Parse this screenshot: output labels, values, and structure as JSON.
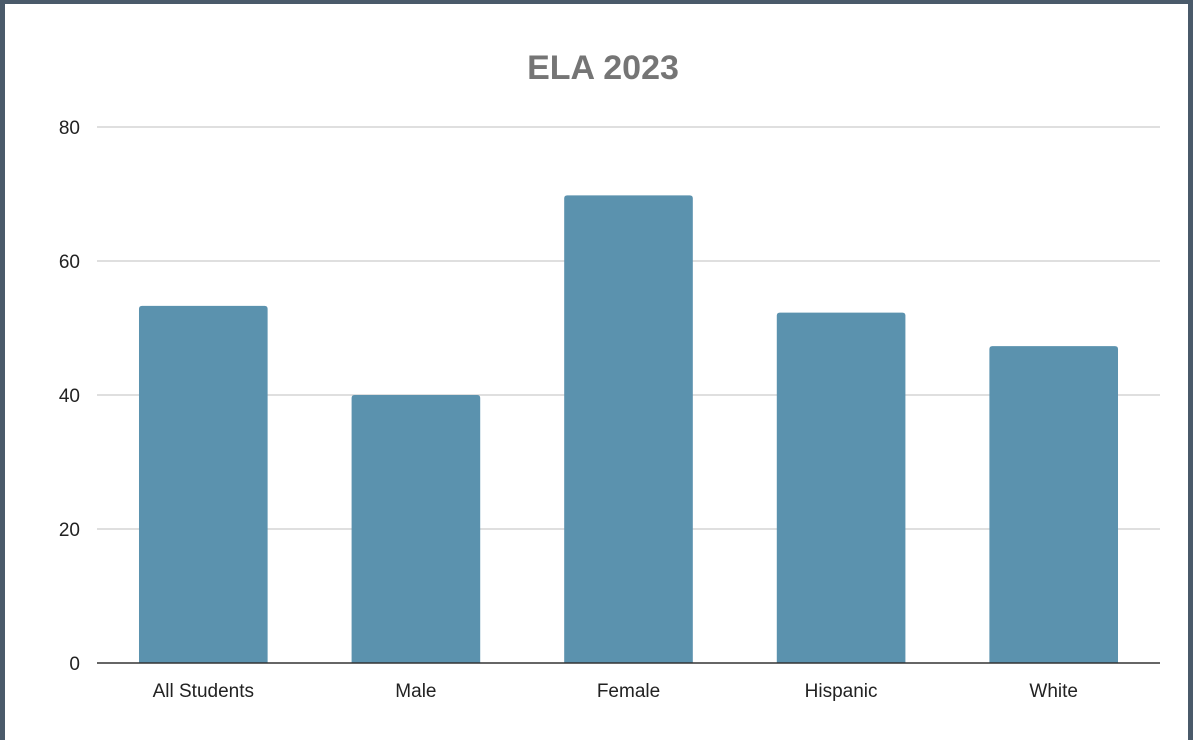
{
  "chart_data": {
    "type": "bar",
    "title": "ELA 2023",
    "xlabel": "",
    "ylabel": "",
    "categories": [
      "All Students",
      "Male",
      "Female",
      "Hispanic",
      "White"
    ],
    "values": [
      53.3,
      40,
      69.8,
      52.3,
      47.3
    ],
    "ylim": [
      0,
      80
    ],
    "yticks": [
      0,
      20,
      40,
      60,
      80
    ],
    "grid": true,
    "legend": "none",
    "bar_color": "#5b92ae",
    "gridline_color": "#cccccc",
    "axis_color": "#333333"
  }
}
